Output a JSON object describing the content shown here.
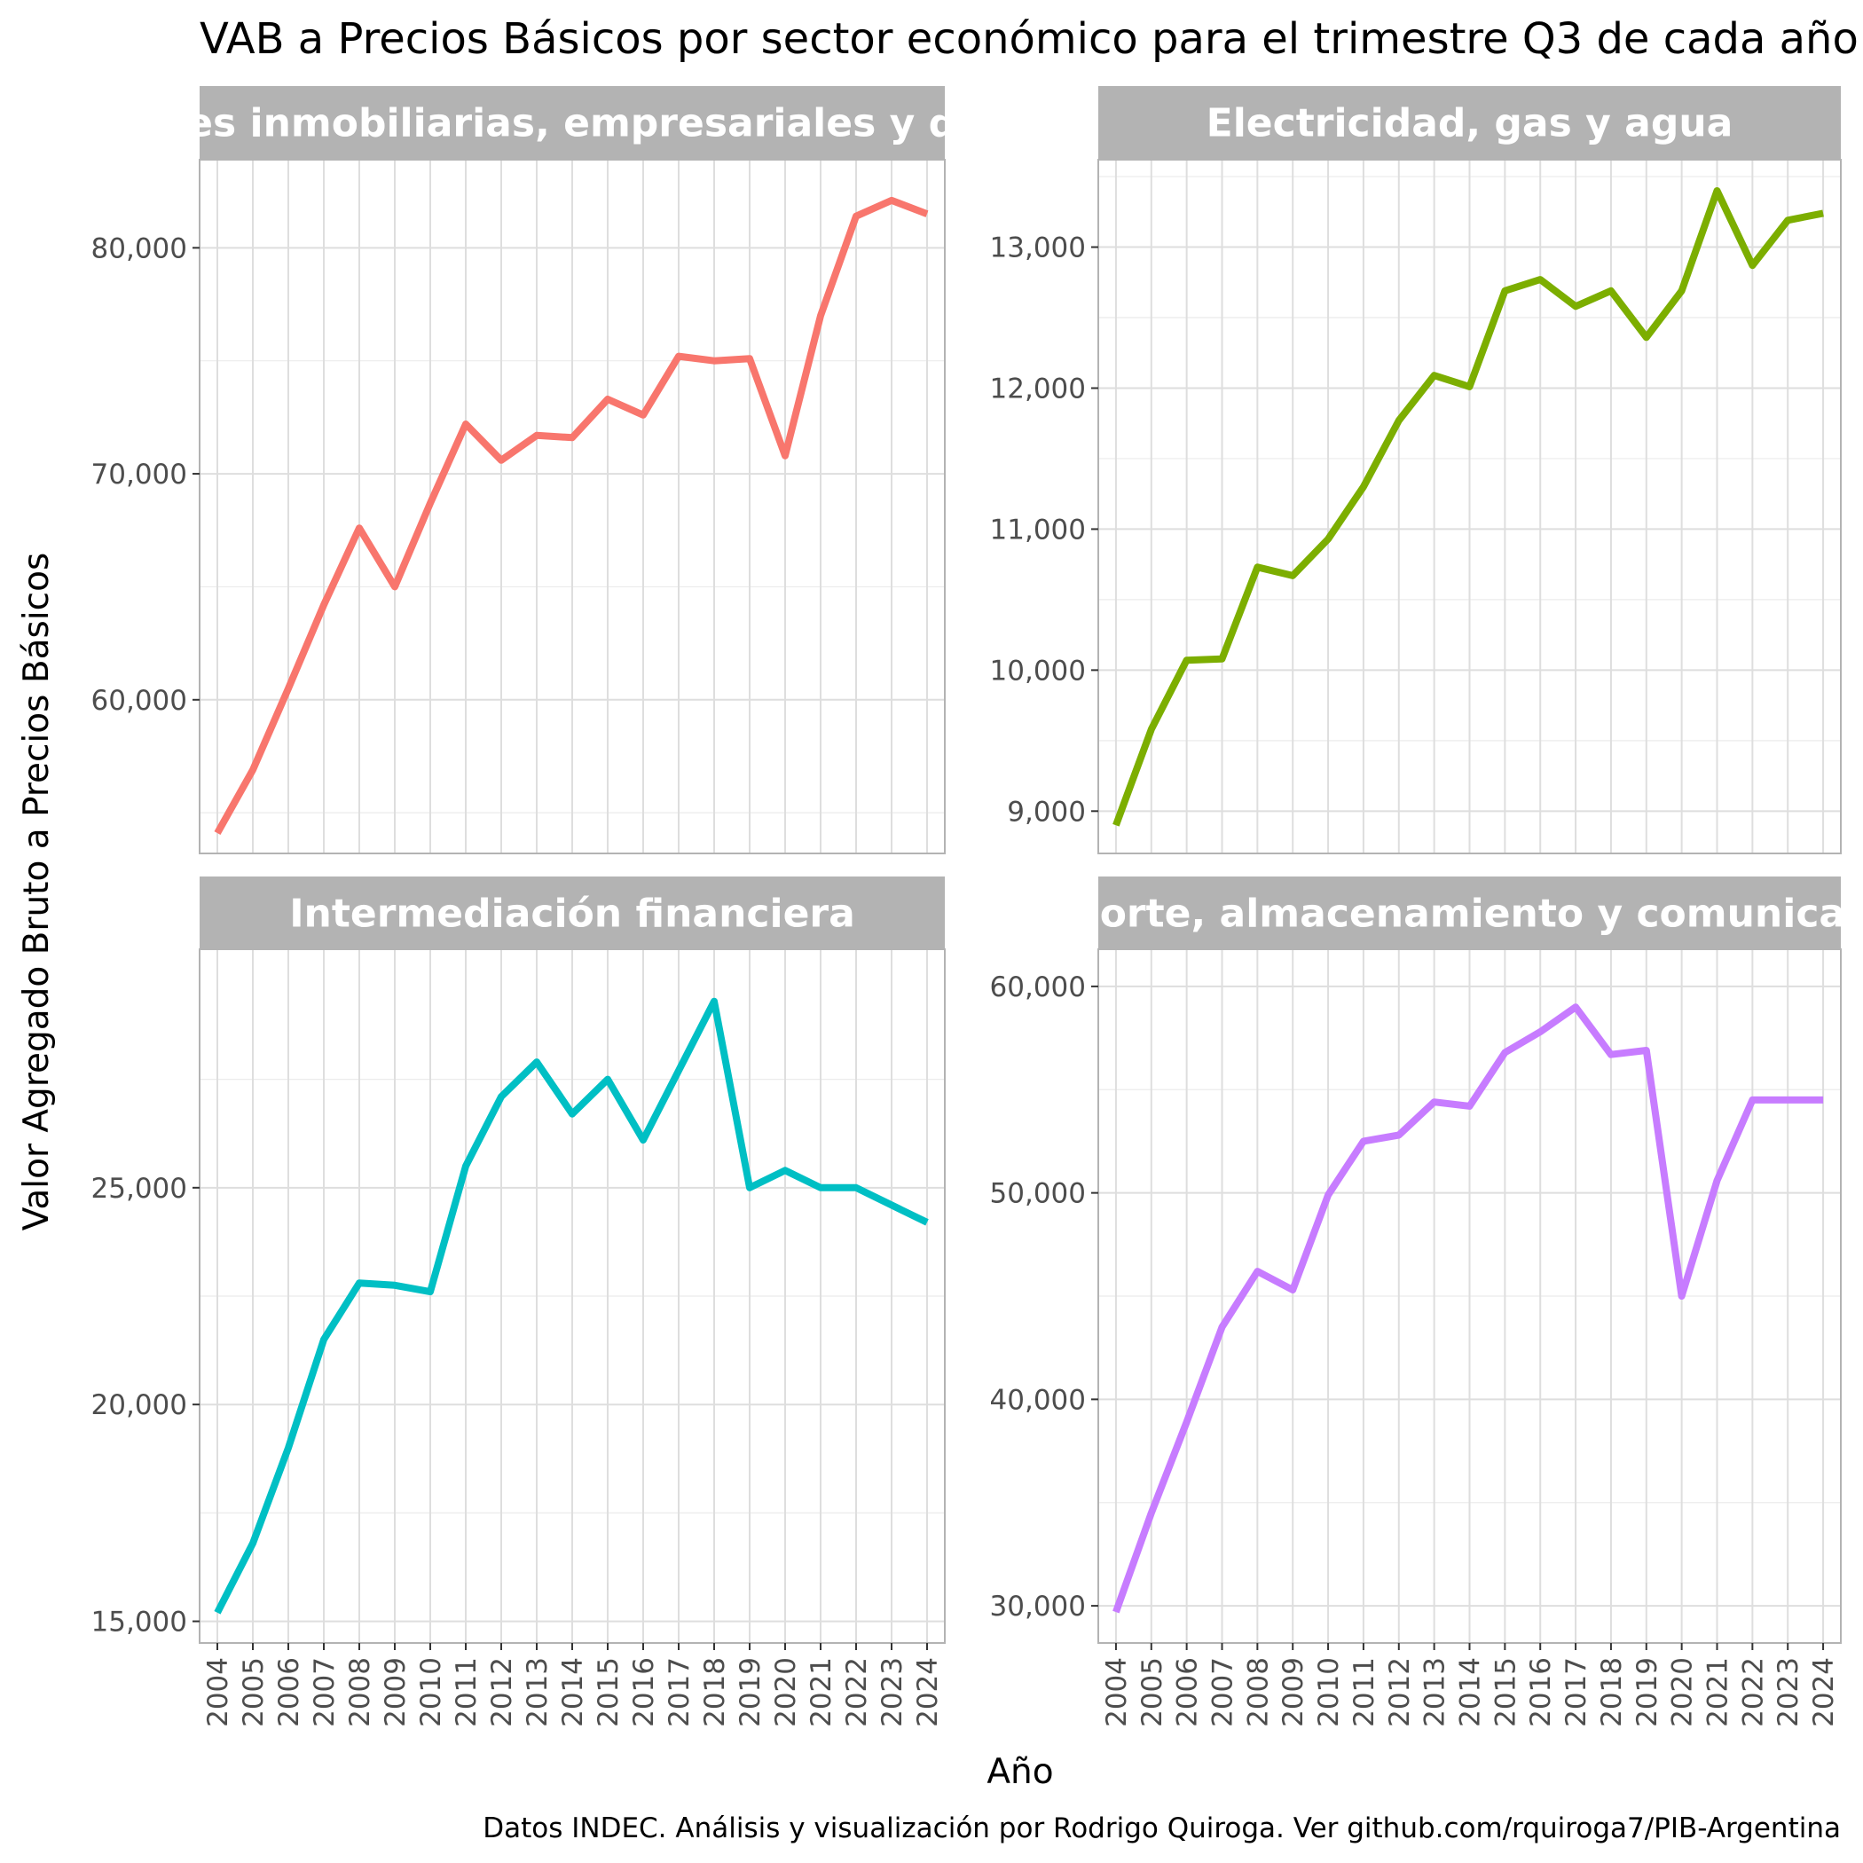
{
  "chart_data": {
    "type": "line",
    "title": "VAB a Precios Básicos por sector económico para el trimestre Q3 de cada año",
    "xlabel": "Año",
    "ylabel": "Valor Agregado Bruto a Precios Básicos",
    "caption": "Datos INDEC. Análisis y visualización por Rodrigo Quiroga. Ver github.com/rquiroga7/PIB-Argentina",
    "x": [
      "2004",
      "2005",
      "2006",
      "2007",
      "2008",
      "2009",
      "2010",
      "2011",
      "2012",
      "2013",
      "2014",
      "2015",
      "2016",
      "2017",
      "2018",
      "2019",
      "2020",
      "2021",
      "2022",
      "2023",
      "2024"
    ],
    "grid": true,
    "legend": "none",
    "facets": [
      {
        "name": "Actividades inmobiliarias, empresariales y de alquiler",
        "color": "#F8766D",
        "ylim": [
          53200,
          83900
        ],
        "yticks": [
          60000,
          70000,
          80000
        ],
        "ytick_labels": [
          "60,000",
          "70,000",
          "80,000"
        ],
        "values": [
          54100,
          56900,
          60500,
          64200,
          67600,
          65000,
          68700,
          72200,
          70600,
          71700,
          71600,
          73300,
          72600,
          75200,
          75000,
          75100,
          70800,
          77000,
          81400,
          82100,
          81500
        ]
      },
      {
        "name": "Electricidad, gas y agua",
        "color": "#7CAE00",
        "ylim": [
          8700,
          13620
        ],
        "yticks": [
          9000,
          10000,
          11000,
          12000,
          13000
        ],
        "ytick_labels": [
          "9,000",
          "10,000",
          "11,000",
          "12,000",
          "13,000"
        ],
        "values": [
          8900,
          9580,
          10070,
          10080,
          10730,
          10670,
          10930,
          11300,
          11770,
          12090,
          12010,
          12690,
          12770,
          12580,
          12690,
          12360,
          12690,
          13400,
          12870,
          13190,
          13240
        ]
      },
      {
        "name": "Intermediación financiera",
        "color": "#00BFC4",
        "ylim": [
          14500,
          30500
        ],
        "yticks": [
          15000,
          20000,
          25000
        ],
        "ytick_labels": [
          "15,000",
          "20,000",
          "25,000"
        ],
        "values": [
          15200,
          16800,
          19000,
          21500,
          22800,
          22750,
          22600,
          25500,
          27100,
          27900,
          26700,
          27500,
          26100,
          27700,
          29300,
          25000,
          25400,
          25000,
          25000,
          24600,
          24200
        ]
      },
      {
        "name": "Transporte, almacenamiento y comunicaciones",
        "color": "#C77CFF",
        "ylim": [
          28200,
          61800
        ],
        "yticks": [
          30000,
          40000,
          50000,
          60000
        ],
        "ytick_labels": [
          "30,000",
          "40,000",
          "50,000",
          "60,000"
        ],
        "values": [
          29700,
          34500,
          38900,
          43500,
          46200,
          45300,
          49900,
          52500,
          52800,
          54400,
          54200,
          56800,
          57800,
          59000,
          56700,
          56900,
          45000,
          50600,
          54500,
          54500,
          54500
        ]
      }
    ]
  }
}
